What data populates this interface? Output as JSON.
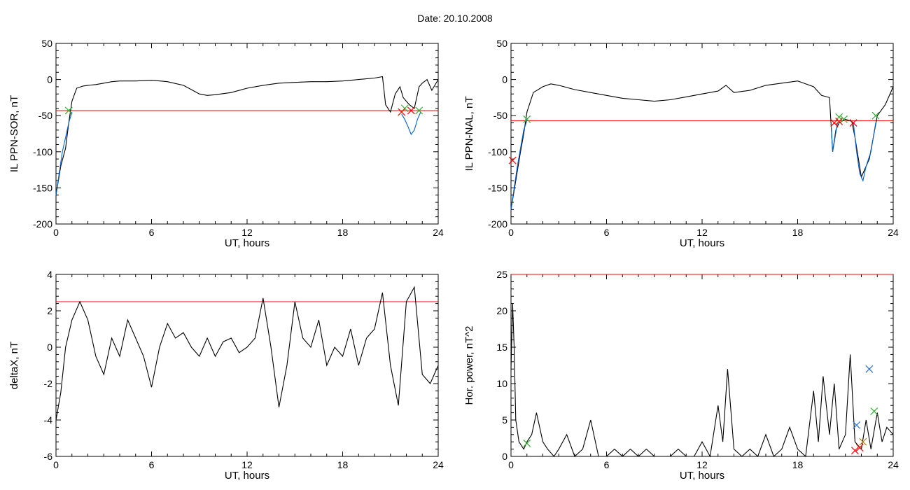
{
  "header": {
    "title": "Date:  20.10.2008"
  },
  "chart_data": [
    {
      "type": "line",
      "xlabel": "UT, hours",
      "ylabel": "IL PPN-SOR, nT",
      "xlim": [
        0,
        24
      ],
      "ylim": [
        -200,
        50
      ],
      "xticks": [
        0,
        6,
        12,
        18,
        24
      ],
      "yticks": [
        50,
        0,
        -50,
        -100,
        -150,
        -200
      ],
      "threshold": {
        "value": -43,
        "color": "#ff0000"
      },
      "series": [
        {
          "color": "#000000",
          "x": [
            0,
            0.3,
            0.6,
            0.8,
            1.0,
            1.3,
            1.7,
            2,
            2.5,
            3,
            3.5,
            4,
            5,
            6,
            7,
            8,
            8.5,
            9,
            9.5,
            10,
            11,
            12,
            13,
            14,
            15,
            16,
            17,
            18,
            19,
            20,
            20.5,
            20.7,
            21,
            21.3,
            21.6,
            21.8,
            22,
            22.2,
            22.5,
            22.8,
            23,
            23.3,
            23.6,
            24
          ],
          "y": [
            -160,
            -120,
            -95,
            -60,
            -30,
            -12,
            -9,
            -8,
            -7,
            -5,
            -3,
            -2,
            -2,
            -1,
            -3,
            -8,
            -14,
            -20,
            -22,
            -21,
            -18,
            -12,
            -8,
            -5,
            -4,
            -3,
            -3,
            -2,
            0,
            2,
            4,
            -35,
            -45,
            -20,
            -10,
            -25,
            -30,
            -35,
            -40,
            -10,
            -5,
            0,
            -15,
            0
          ]
        },
        {
          "color": "#0060d0",
          "x": [
            0,
            0.2,
            0.4,
            0.6,
            0.8,
            1.0
          ],
          "y": [
            -160,
            -130,
            -100,
            -80,
            -60,
            -45
          ]
        },
        {
          "color": "#0060d0",
          "x": [
            21.7,
            21.9,
            22.1,
            22.3,
            22.5,
            22.7,
            22.9
          ],
          "y": [
            -48,
            -55,
            -65,
            -76,
            -70,
            -55,
            -45
          ]
        }
      ],
      "markers": [
        {
          "color": "#30b030",
          "x": [
            0.8,
            21.9,
            22.8
          ],
          "y": [
            -43,
            -40,
            -43
          ]
        },
        {
          "color": "#ff0000",
          "x": [
            21.7,
            22.3
          ],
          "y": [
            -45,
            -43
          ]
        }
      ]
    },
    {
      "type": "line",
      "xlabel": "UT, hours",
      "ylabel": "IL PPN-NAL, nT",
      "xlim": [
        0,
        24
      ],
      "ylim": [
        -200,
        50
      ],
      "xticks": [
        0,
        6,
        12,
        18,
        24
      ],
      "yticks": [
        50,
        0,
        -50,
        -100,
        -150,
        -200
      ],
      "threshold": {
        "value": -57,
        "color": "#ff0000"
      },
      "series": [
        {
          "color": "#000000",
          "x": [
            0,
            0.3,
            0.6,
            0.8,
            1.0,
            1.4,
            2,
            2.5,
            3,
            4,
            5,
            6,
            7,
            8,
            9,
            10,
            11,
            12,
            13,
            13.5,
            14,
            15,
            16,
            17,
            18,
            19,
            19.5,
            20,
            20.2,
            20.4,
            20.6,
            21,
            21.4,
            21.6,
            22,
            22.5,
            23,
            23.5,
            24
          ],
          "y": [
            -180,
            -140,
            -100,
            -75,
            -45,
            -18,
            -10,
            -6,
            -8,
            -14,
            -18,
            -22,
            -26,
            -28,
            -30,
            -28,
            -24,
            -20,
            -16,
            -8,
            -18,
            -15,
            -8,
            -5,
            -2,
            -10,
            -22,
            -25,
            -100,
            -70,
            -60,
            -55,
            -58,
            -80,
            -135,
            -110,
            -50,
            -35,
            -10
          ]
        },
        {
          "color": "#0060d0",
          "x": [
            0,
            0.2,
            0.4,
            0.6,
            0.8,
            1.0
          ],
          "y": [
            -180,
            -150,
            -120,
            -95,
            -70,
            -57
          ]
        },
        {
          "color": "#0060d0",
          "x": [
            20.1,
            20.2,
            20.35,
            20.5
          ],
          "y": [
            -60,
            -100,
            -80,
            -60
          ]
        },
        {
          "color": "#0060d0",
          "x": [
            21.5,
            21.7,
            21.9,
            22.1,
            22.3,
            22.6,
            22.9
          ],
          "y": [
            -60,
            -100,
            -130,
            -140,
            -120,
            -100,
            -60
          ]
        }
      ],
      "markers": [
        {
          "color": "#30b030",
          "x": [
            1.0,
            20.6,
            20.9,
            22.9
          ],
          "y": [
            -55,
            -52,
            -55,
            -50
          ]
        },
        {
          "color": "#ff0000",
          "x": [
            0.1,
            20.3,
            20.6,
            21.5
          ],
          "y": [
            -112,
            -60,
            -58,
            -60
          ]
        }
      ]
    },
    {
      "type": "line",
      "xlabel": "UT, hours",
      "ylabel": "deltaX, nT",
      "xlim": [
        0,
        24
      ],
      "ylim": [
        -6,
        4
      ],
      "xticks": [
        0,
        6,
        12,
        18,
        24
      ],
      "yticks": [
        4,
        2,
        0,
        -2,
        -4,
        -6
      ],
      "threshold": {
        "value": 2.5,
        "color": "#ff0000"
      },
      "series": [
        {
          "color": "#000000",
          "x": [
            0,
            0.3,
            0.6,
            1.0,
            1.5,
            2.0,
            2.5,
            3.0,
            3.5,
            4.0,
            4.5,
            5.0,
            5.5,
            6.0,
            6.5,
            7.0,
            7.5,
            8.0,
            8.5,
            9.0,
            9.5,
            10.0,
            10.5,
            11.0,
            11.5,
            12.0,
            12.5,
            13.0,
            13.5,
            14.0,
            14.5,
            15.0,
            15.5,
            16.0,
            16.5,
            17.0,
            17.5,
            18.0,
            18.5,
            19.0,
            19.5,
            20.0,
            20.5,
            21.0,
            21.5,
            22.0,
            22.5,
            23.0,
            23.5,
            24.0
          ],
          "y": [
            -4.0,
            -2.5,
            0.0,
            1.5,
            2.5,
            1.5,
            -0.5,
            -1.5,
            0.5,
            -0.5,
            1.5,
            0.5,
            -0.5,
            -2.2,
            0.0,
            1.3,
            0.5,
            0.8,
            0.0,
            -0.5,
            0.5,
            -0.5,
            0.3,
            0.5,
            -0.3,
            0.0,
            0.5,
            2.7,
            0.0,
            -3.3,
            -1.0,
            2.5,
            0.5,
            0.0,
            1.5,
            -1.0,
            0.0,
            -0.5,
            1.0,
            -1.0,
            0.5,
            1.0,
            3.0,
            -1.0,
            -3.2,
            2.5,
            3.3,
            -1.5,
            -2.0,
            -1.0
          ]
        }
      ],
      "markers": []
    },
    {
      "type": "line",
      "xlabel": "UT, hours",
      "ylabel": "Hor. power, nT^2",
      "xlim": [
        0,
        24
      ],
      "ylim": [
        0,
        25
      ],
      "xticks": [
        0,
        6,
        12,
        18,
        24
      ],
      "yticks": [
        25,
        20,
        15,
        10,
        5,
        0
      ],
      "threshold": {
        "value": 25,
        "color": "#ff0000"
      },
      "series": [
        {
          "color": "#000000",
          "x": [
            0,
            0.1,
            0.2,
            0.3,
            0.5,
            0.8,
            1.0,
            1.3,
            1.6,
            2.0,
            2.3,
            2.7,
            3.0,
            3.5,
            4.0,
            4.5,
            5.0,
            5.5,
            6.0,
            6.5,
            7.0,
            7.5,
            8.0,
            8.5,
            9.0,
            9.5,
            10.0,
            10.5,
            11.0,
            11.5,
            12.0,
            12.5,
            13.0,
            13.3,
            13.6,
            14.0,
            14.5,
            15.0,
            15.5,
            16.0,
            16.5,
            17.0,
            17.5,
            18.0,
            18.5,
            19.0,
            19.3,
            19.6,
            20.0,
            20.3,
            20.6,
            21.0,
            21.3,
            21.6,
            22.0,
            22.3,
            22.6,
            23.0,
            23.3,
            23.6,
            24.0
          ],
          "y": [
            12,
            21,
            15,
            5,
            2,
            1,
            2,
            3,
            6,
            2,
            1,
            0,
            1,
            3,
            0,
            1,
            5,
            0,
            0,
            1,
            0,
            1,
            0,
            1,
            0,
            0,
            0,
            1,
            0,
            0,
            2,
            0,
            7,
            2,
            12,
            1,
            0,
            1,
            0,
            3,
            0,
            1,
            4,
            1,
            0,
            9,
            2,
            11,
            3,
            10,
            1,
            3,
            14,
            2,
            1,
            5,
            1,
            6,
            2,
            4,
            3
          ]
        }
      ],
      "markers": [
        {
          "color": "#30b030",
          "x": [
            1.0,
            22.8
          ],
          "y": [
            1.8,
            6.2
          ]
        },
        {
          "color": "#ff0000",
          "x": [
            21.6,
            21.9
          ],
          "y": [
            0.8,
            1.2
          ]
        },
        {
          "color": "#3070d0",
          "x": [
            21.7,
            22.5
          ],
          "y": [
            4.3,
            12.0
          ]
        },
        {
          "color": "#c08000",
          "x": [
            22.1
          ],
          "y": [
            2.0
          ]
        }
      ]
    }
  ]
}
